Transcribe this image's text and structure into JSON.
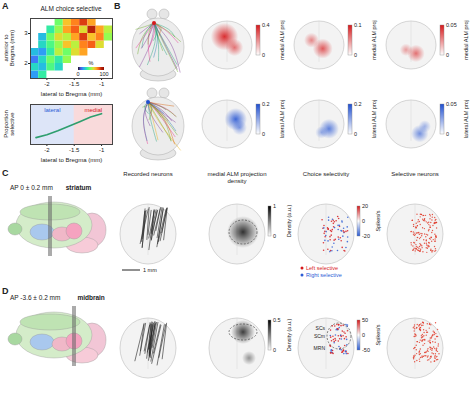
{
  "chart_data": [
    {
      "type": "heatmap",
      "panel_label": "A",
      "title": "ALM choice selective",
      "xlabel": "lateral to Bregma (mm)",
      "ylabel": "anterior to Bregma (mm)",
      "x_edges": [
        -2.3,
        -2.15,
        -2.0,
        -1.85,
        -1.7,
        -1.55,
        -1.4,
        -1.25,
        -1.1,
        -0.95,
        -0.8
      ],
      "y_edges": [
        1.5,
        1.75,
        2.0,
        2.25,
        2.5,
        2.75,
        3.0,
        3.25,
        3.5
      ],
      "values": [
        [
          20,
          35,
          null,
          null,
          null,
          null,
          null,
          null,
          null,
          null
        ],
        [
          30,
          25,
          40,
          30,
          null,
          null,
          null,
          null,
          null,
          null
        ],
        [
          15,
          30,
          45,
          35,
          50,
          null,
          null,
          null,
          null,
          null
        ],
        [
          25,
          20,
          35,
          55,
          45,
          60,
          70,
          null,
          null,
          null
        ],
        [
          null,
          30,
          40,
          50,
          65,
          55,
          75,
          80,
          60,
          null
        ],
        [
          null,
          25,
          45,
          60,
          55,
          70,
          85,
          65,
          75,
          50
        ],
        [
          null,
          null,
          35,
          50,
          70,
          80,
          60,
          90,
          70,
          55
        ],
        [
          null,
          null,
          null,
          45,
          65,
          75,
          85,
          70,
          null,
          null
        ]
      ],
      "xlim": [
        -2.3,
        -0.8
      ],
      "xticks": [
        -2,
        -1.5,
        -1
      ],
      "ylim": [
        1.5,
        3.5
      ],
      "yticks": [
        2,
        3
      ],
      "colorbar": {
        "range": [
          0,
          100
        ],
        "ticks": [
          0,
          100
        ],
        "label": "%"
      }
    },
    {
      "type": "line",
      "xlabel": "lateral to Bregma (mm)",
      "ylabel": "Proportion selective",
      "x": [
        -2.2,
        -2.0,
        -1.8,
        -1.6,
        -1.4,
        -1.2,
        -1.0
      ],
      "values": [
        0.22,
        0.27,
        0.34,
        0.42,
        0.5,
        0.58,
        0.64
      ],
      "color": "#2e9e6e",
      "xlim": [
        -2.3,
        -0.8
      ],
      "xticks": [
        -2,
        -1.5,
        -1
      ],
      "ylim": [
        0.1,
        0.8
      ],
      "tick_labels": "x",
      "regions": [
        {
          "label": "lateral",
          "from": -2.3,
          "to": -1.5,
          "color": "#2b5cd6"
        },
        {
          "label": "medial",
          "from": -1.5,
          "to": -0.8,
          "color": "#d7191c"
        }
      ]
    }
  ],
  "figure": {
    "B": {
      "label": "B",
      "rows": [
        {
          "color": "#d7191c",
          "colorbars": [
            {
              "range": [
                0,
                0.4
              ],
              "ticks": [
                0,
                0.4
              ],
              "label": "medial ALM proj"
            },
            {
              "range": [
                0,
                0.1
              ],
              "ticks": [
                0,
                0.1
              ],
              "label": "medial ALM proj"
            },
            {
              "range": [
                0,
                0.05
              ],
              "ticks": [
                0,
                0.05
              ],
              "label": "medial ALM proj"
            }
          ]
        },
        {
          "color": "#1f4fd1",
          "colorbars": [
            {
              "range": [
                0,
                0.2
              ],
              "ticks": [
                0,
                0.2
              ],
              "label": "lateral ALM proj"
            },
            {
              "range": [
                0,
                0.2
              ],
              "ticks": [
                0,
                0.2
              ],
              "label": "lateral ALM proj"
            },
            {
              "range": [
                0,
                0.05
              ],
              "ticks": [
                0,
                0.05
              ],
              "label": "lateral ALM proj"
            }
          ]
        }
      ]
    },
    "column_titles": [
      "Recorded neurons",
      "medial ALM projection density",
      "Choice selectivity",
      "Selective neurons"
    ],
    "C": {
      "label": "C",
      "ap": "AP 0 ± 0.2 mm",
      "region": "striatum",
      "scale_bar": "1 mm",
      "density_colorbar": {
        "range": [
          0,
          1
        ],
        "ticks": [
          0,
          1
        ],
        "label": "Density (a.u.)"
      },
      "selectivity_colorbar": {
        "range": [
          -20,
          20
        ],
        "ticks": [
          -20,
          0,
          20
        ],
        "label": "Spikes/s"
      },
      "selectivity_key": [
        {
          "label": "Left selective",
          "color": "#d7191c"
        },
        {
          "label": "Right selective",
          "color": "#2b5cd6"
        }
      ]
    },
    "D": {
      "label": "D",
      "ap": "AP -3.6 ± 0.2 mm",
      "region": "midbrain",
      "density_colorbar": {
        "range": [
          0,
          0.5
        ],
        "ticks": [
          0,
          0.5
        ],
        "label": "Density (a.u.)"
      },
      "selectivity_colorbar": {
        "range": [
          -50,
          50
        ],
        "ticks": [
          -50,
          0,
          50
        ],
        "label": "Spikes/s"
      },
      "areas": [
        "SCs",
        "SCm",
        "MRN"
      ]
    }
  }
}
